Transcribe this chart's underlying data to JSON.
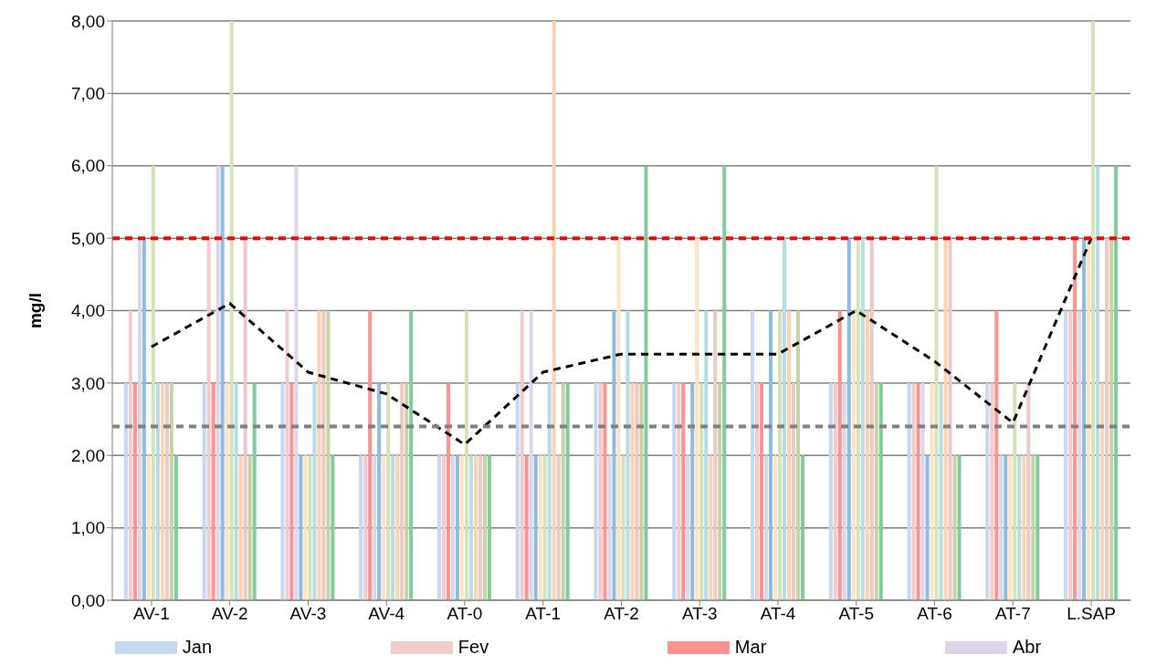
{
  "chart_data": {
    "type": "bar",
    "ylabel": "mg/l",
    "categories": [
      "AV-1",
      "AV-2",
      "AV-3",
      "AV-4",
      "AT-0",
      "AT-1",
      "AT-2",
      "AT-3",
      "AT-4",
      "AT-5",
      "AT-6",
      "AT-7",
      "L.SAP"
    ],
    "series": [
      {
        "name": "Jan",
        "color": "#c6d9f1",
        "values": [
          3,
          3,
          3,
          2,
          2,
          3,
          3,
          3,
          4,
          3,
          3,
          3,
          4
        ]
      },
      {
        "name": "Fev",
        "color": "#f2cccc",
        "values": [
          4,
          5,
          4,
          2,
          2,
          4,
          3,
          3,
          3,
          3,
          3,
          3,
          4
        ]
      },
      {
        "name": "Mar",
        "color": "#ff9191",
        "values": [
          3,
          3,
          3,
          4,
          3,
          2,
          3,
          3,
          3,
          4,
          3,
          4,
          5
        ]
      },
      {
        "name": "Abr",
        "color": "#ddd6e8",
        "values": [
          5,
          6,
          6,
          2,
          2,
          4,
          2,
          2,
          2,
          3,
          3,
          2,
          4
        ]
      },
      {
        "color": "#8dbbe2",
        "values": [
          5,
          6,
          2,
          3,
          2,
          2,
          4,
          3,
          4,
          5,
          2,
          2,
          5
        ]
      },
      {
        "color": "#fde2c4",
        "values": [
          2,
          3,
          2,
          2,
          2,
          2,
          5,
          5,
          2,
          4,
          3,
          2,
          5
        ]
      },
      {
        "color": "#d5e3b8",
        "values": [
          6,
          8,
          2,
          3,
          4,
          2,
          2,
          3,
          4,
          5,
          6,
          3,
          8
        ]
      },
      {
        "color": "#b4dde6",
        "values": [
          3,
          3,
          3,
          2,
          2,
          3,
          4,
          4,
          5,
          5,
          3,
          2,
          6
        ]
      },
      {
        "color": "#fcd3b0",
        "values": [
          3,
          2,
          4,
          2,
          2,
          8,
          3,
          2,
          4,
          4,
          5,
          2,
          3
        ]
      },
      {
        "color": "#ecc8c8",
        "values": [
          3,
          5,
          4,
          3,
          2,
          2,
          3,
          4,
          3,
          5,
          5,
          3,
          5
        ]
      },
      {
        "color": "#c7d3a4",
        "values": [
          3,
          2,
          4,
          3,
          2,
          3,
          3,
          3,
          4,
          3,
          2,
          2,
          5
        ]
      },
      {
        "color": "#80cc9c",
        "values": [
          2,
          3,
          2,
          4,
          2,
          3,
          6,
          6,
          2,
          3,
          2,
          2,
          6
        ]
      },
      {
        "type": "line",
        "color": "#000000",
        "line_style": "dashed",
        "marker": "none",
        "values": [
          3.5,
          4.1,
          3.15,
          2.85,
          2.15,
          3.15,
          3.4,
          3.4,
          3.4,
          4.0,
          3.3,
          2.45,
          5.0
        ]
      }
    ],
    "ref_lines": [
      {
        "axis": "y",
        "value": 5,
        "color": "#ff0000",
        "line_style": "dashed"
      },
      {
        "axis": "y",
        "value": 2.4,
        "color": "#808080",
        "line_style": "dashed"
      }
    ],
    "ylim": [
      0,
      8
    ],
    "yticks": [
      {
        "value": 0,
        "label": "0,00"
      },
      {
        "value": 1,
        "label": "1,00"
      },
      {
        "value": 2,
        "label": "2,00"
      },
      {
        "value": 3,
        "label": "3,00"
      },
      {
        "value": 4,
        "label": "4,00"
      },
      {
        "value": 5,
        "label": "5,00"
      },
      {
        "value": 6,
        "label": "6,00"
      },
      {
        "value": 7,
        "label": "7,00"
      },
      {
        "value": 8,
        "label": "8,00"
      }
    ],
    "grid": "y",
    "legend": "bottom"
  }
}
